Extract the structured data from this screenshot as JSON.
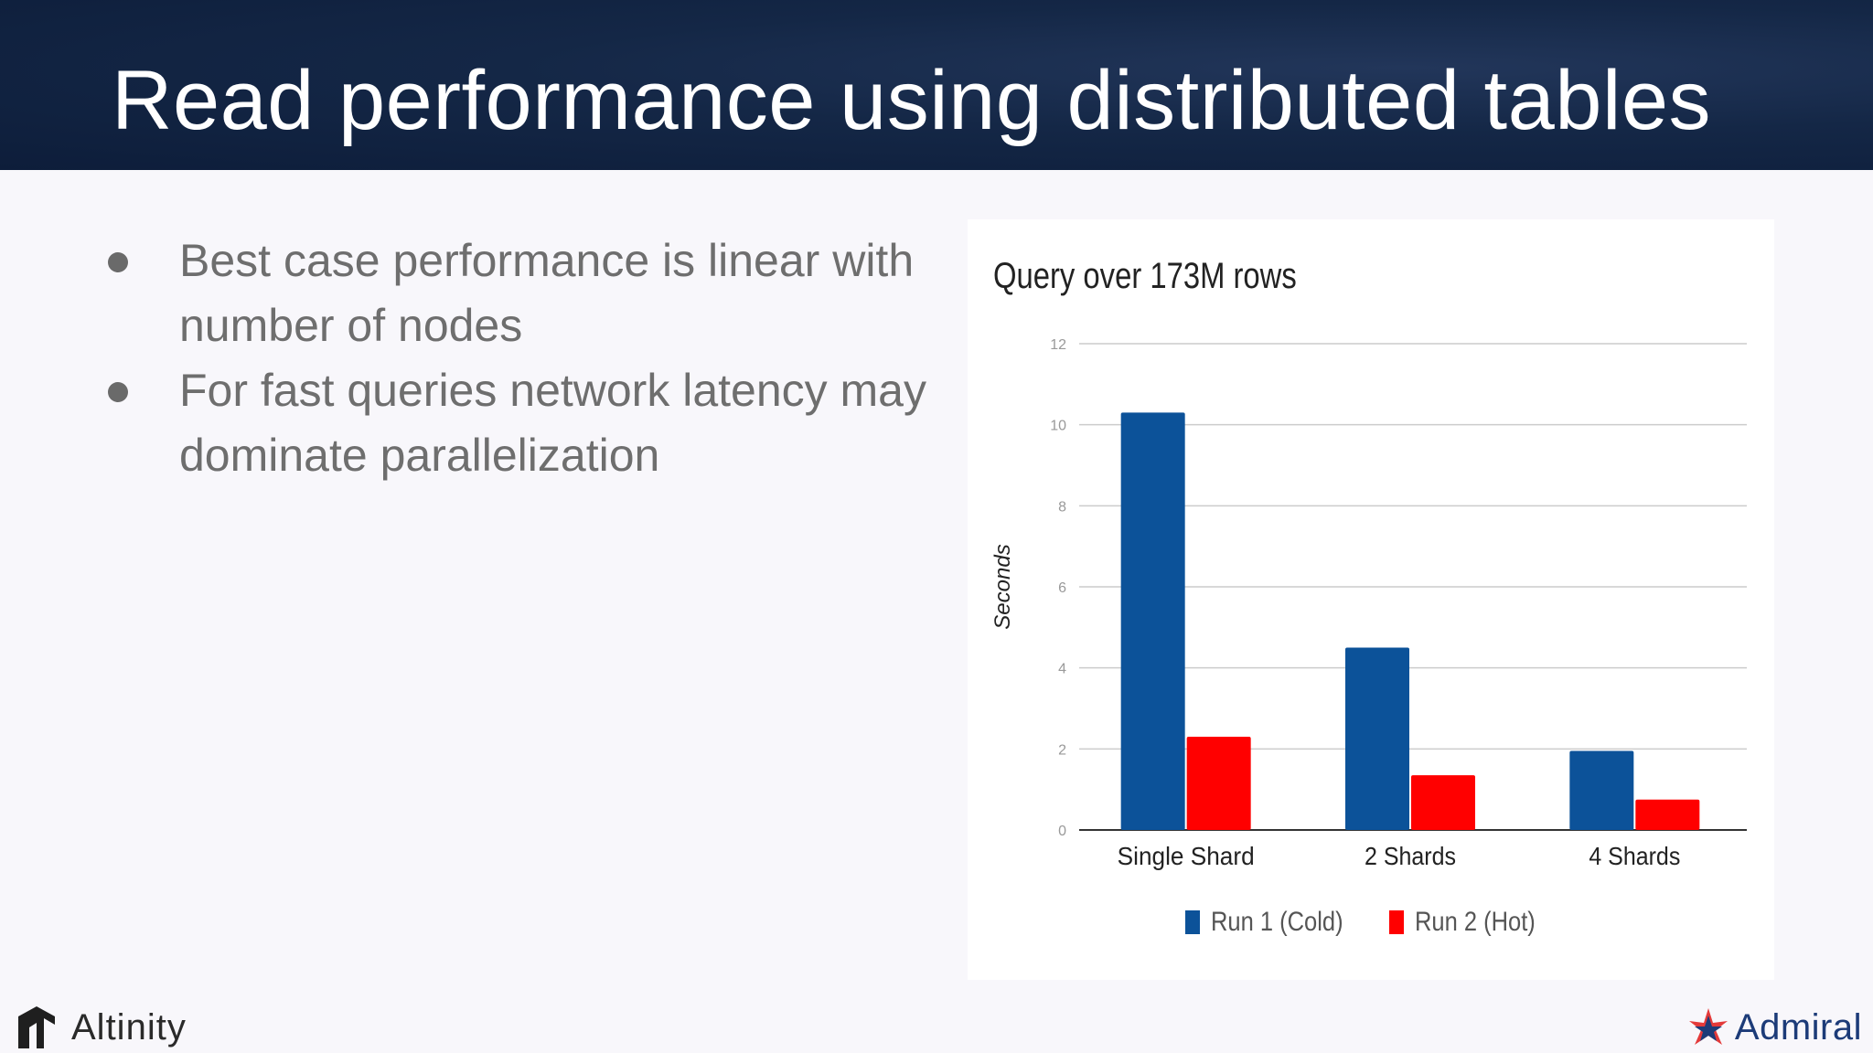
{
  "slide": {
    "title": "Read performance using distributed tables",
    "bullets": [
      "Best case performance is linear with number of nodes",
      "For fast queries network latency may dominate parallelization"
    ]
  },
  "footer": {
    "left_logo": "Altinity",
    "right_logo": "Admiral"
  },
  "colors": {
    "header_bg": "#142746",
    "series_1": "#0c5299",
    "series_2": "#ff0000"
  },
  "chart_data": {
    "type": "bar",
    "title": "Query over 173M rows",
    "xlabel": "",
    "ylabel": "Seconds",
    "categories": [
      "Single Shard",
      "2 Shards",
      "4 Shards"
    ],
    "series": [
      {
        "name": "Run 1 (Cold)",
        "color": "#0c5299",
        "values": [
          10.3,
          4.5,
          1.95
        ]
      },
      {
        "name": "Run 2 (Hot)",
        "color": "#ff0000",
        "values": [
          2.3,
          1.35,
          0.75
        ]
      }
    ],
    "ylim": [
      0,
      12
    ],
    "yticks": [
      "0",
      "2",
      "4",
      "6",
      "8",
      "10",
      "12"
    ],
    "grid": true,
    "legend": "bottom"
  }
}
